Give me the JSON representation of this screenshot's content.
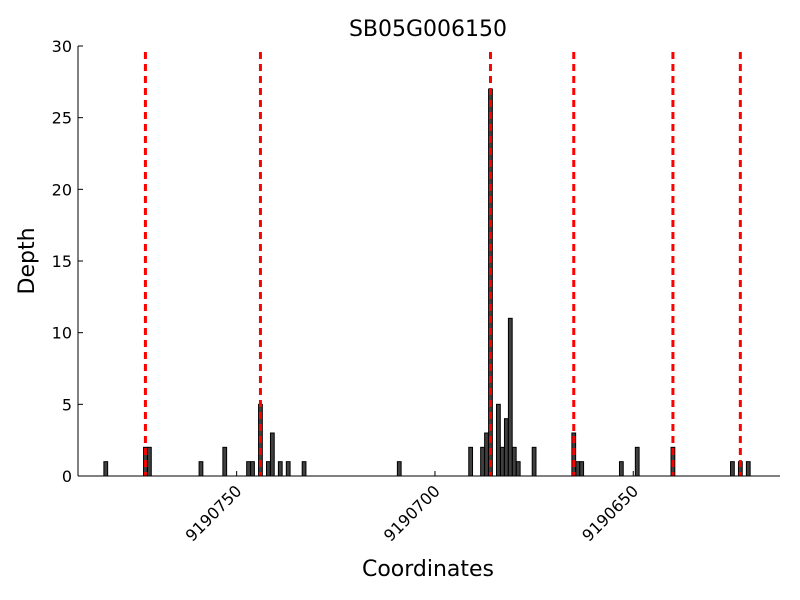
{
  "chart_data": {
    "type": "bar",
    "title": "SB05G006150",
    "xlabel": "Coordinates",
    "ylabel": "Depth",
    "x_reversed": true,
    "xlim": [
      9190790,
      9190613
    ],
    "ylim": [
      0,
      30
    ],
    "yticks": [
      0,
      5,
      10,
      15,
      20,
      25,
      30
    ],
    "xticks": [
      {
        "value": 9190750,
        "label": "9190750"
      },
      {
        "value": 9190700,
        "label": "9190700"
      },
      {
        "value": 9190650,
        "label": "9190650"
      }
    ],
    "bars": [
      {
        "x": 9190783,
        "y": 1
      },
      {
        "x": 9190773,
        "y": 2
      },
      {
        "x": 9190772,
        "y": 2
      },
      {
        "x": 9190759,
        "y": 1
      },
      {
        "x": 9190753,
        "y": 2
      },
      {
        "x": 9190747,
        "y": 1
      },
      {
        "x": 9190746,
        "y": 1
      },
      {
        "x": 9190744,
        "y": 5
      },
      {
        "x": 9190742,
        "y": 1
      },
      {
        "x": 9190741,
        "y": 3
      },
      {
        "x": 9190739,
        "y": 1
      },
      {
        "x": 9190737,
        "y": 1
      },
      {
        "x": 9190733,
        "y": 1
      },
      {
        "x": 9190709,
        "y": 1
      },
      {
        "x": 9190691,
        "y": 2
      },
      {
        "x": 9190688,
        "y": 2
      },
      {
        "x": 9190687,
        "y": 3
      },
      {
        "x": 9190686,
        "y": 27
      },
      {
        "x": 9190684,
        "y": 5
      },
      {
        "x": 9190683,
        "y": 2
      },
      {
        "x": 9190682,
        "y": 4
      },
      {
        "x": 9190681,
        "y": 11
      },
      {
        "x": 9190680,
        "y": 2
      },
      {
        "x": 9190679,
        "y": 1
      },
      {
        "x": 9190675,
        "y": 2
      },
      {
        "x": 9190665,
        "y": 3
      },
      {
        "x": 9190664,
        "y": 1
      },
      {
        "x": 9190663,
        "y": 1
      },
      {
        "x": 9190653,
        "y": 1
      },
      {
        "x": 9190649,
        "y": 2
      },
      {
        "x": 9190640,
        "y": 2
      },
      {
        "x": 9190625,
        "y": 1
      },
      {
        "x": 9190623,
        "y": 1
      },
      {
        "x": 9190621,
        "y": 1
      }
    ],
    "vlines": [
      9190773,
      9190744,
      9190686,
      9190665,
      9190640,
      9190623
    ],
    "colors": {
      "bar_fill": "#404040",
      "bar_edge": "#000000",
      "vline": "#ff0000",
      "axis": "#000000"
    }
  }
}
